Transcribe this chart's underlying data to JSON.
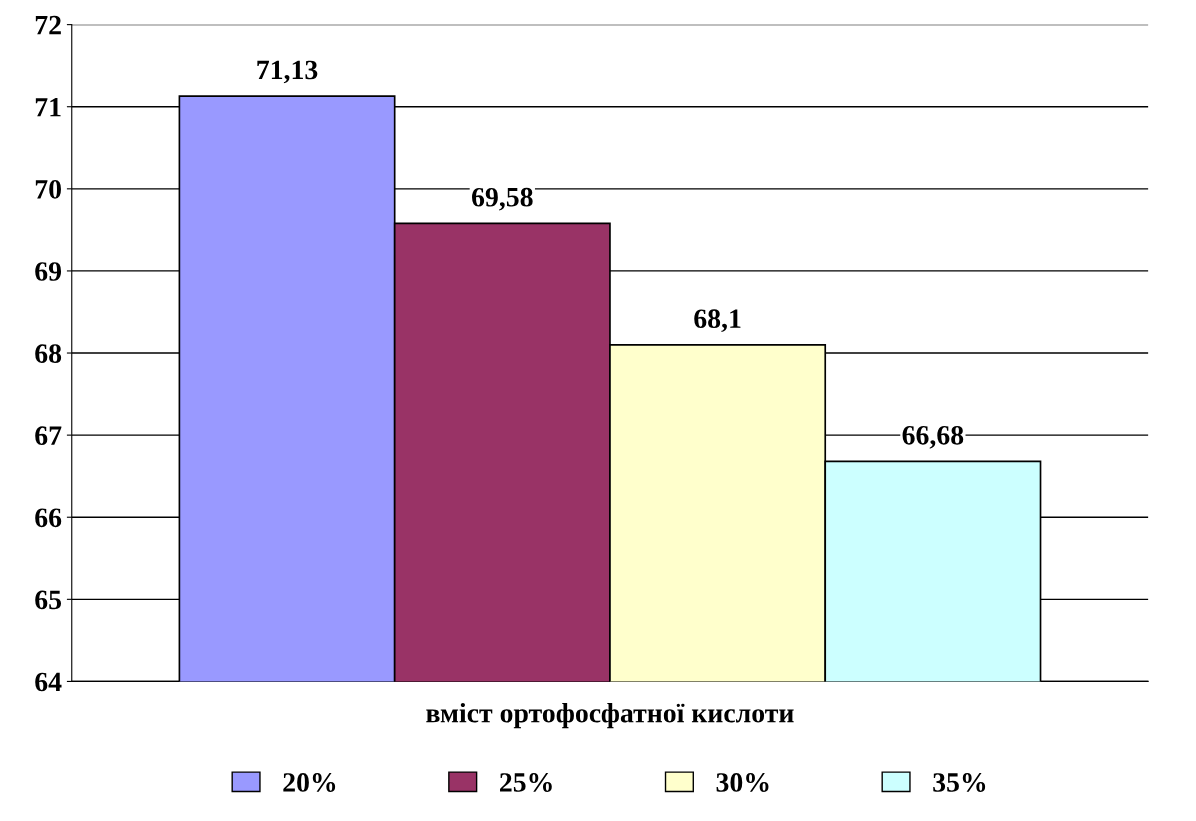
{
  "chart_data": {
    "type": "bar",
    "xlabel": "вміст ортофосфатної кислоти",
    "categories": [
      null
    ],
    "series": [
      {
        "name": "20%",
        "color": "#9999ff",
        "values": [
          71.13
        ],
        "value_labels": [
          "71,13"
        ]
      },
      {
        "name": "25%",
        "color": "#993366",
        "values": [
          69.58
        ],
        "value_labels": [
          "69,58"
        ]
      },
      {
        "name": "30%",
        "color": "#ffffcc",
        "values": [
          68.1
        ],
        "value_labels": [
          "68,1"
        ]
      },
      {
        "name": "35%",
        "color": "#ccffff",
        "values": [
          66.68
        ],
        "value_labels": [
          "66,68"
        ]
      }
    ],
    "ylim": [
      64,
      72
    ],
    "yticks": [
      64,
      65,
      66,
      67,
      68,
      69,
      70,
      71,
      72
    ],
    "grid": "y",
    "legend": "bottom"
  }
}
